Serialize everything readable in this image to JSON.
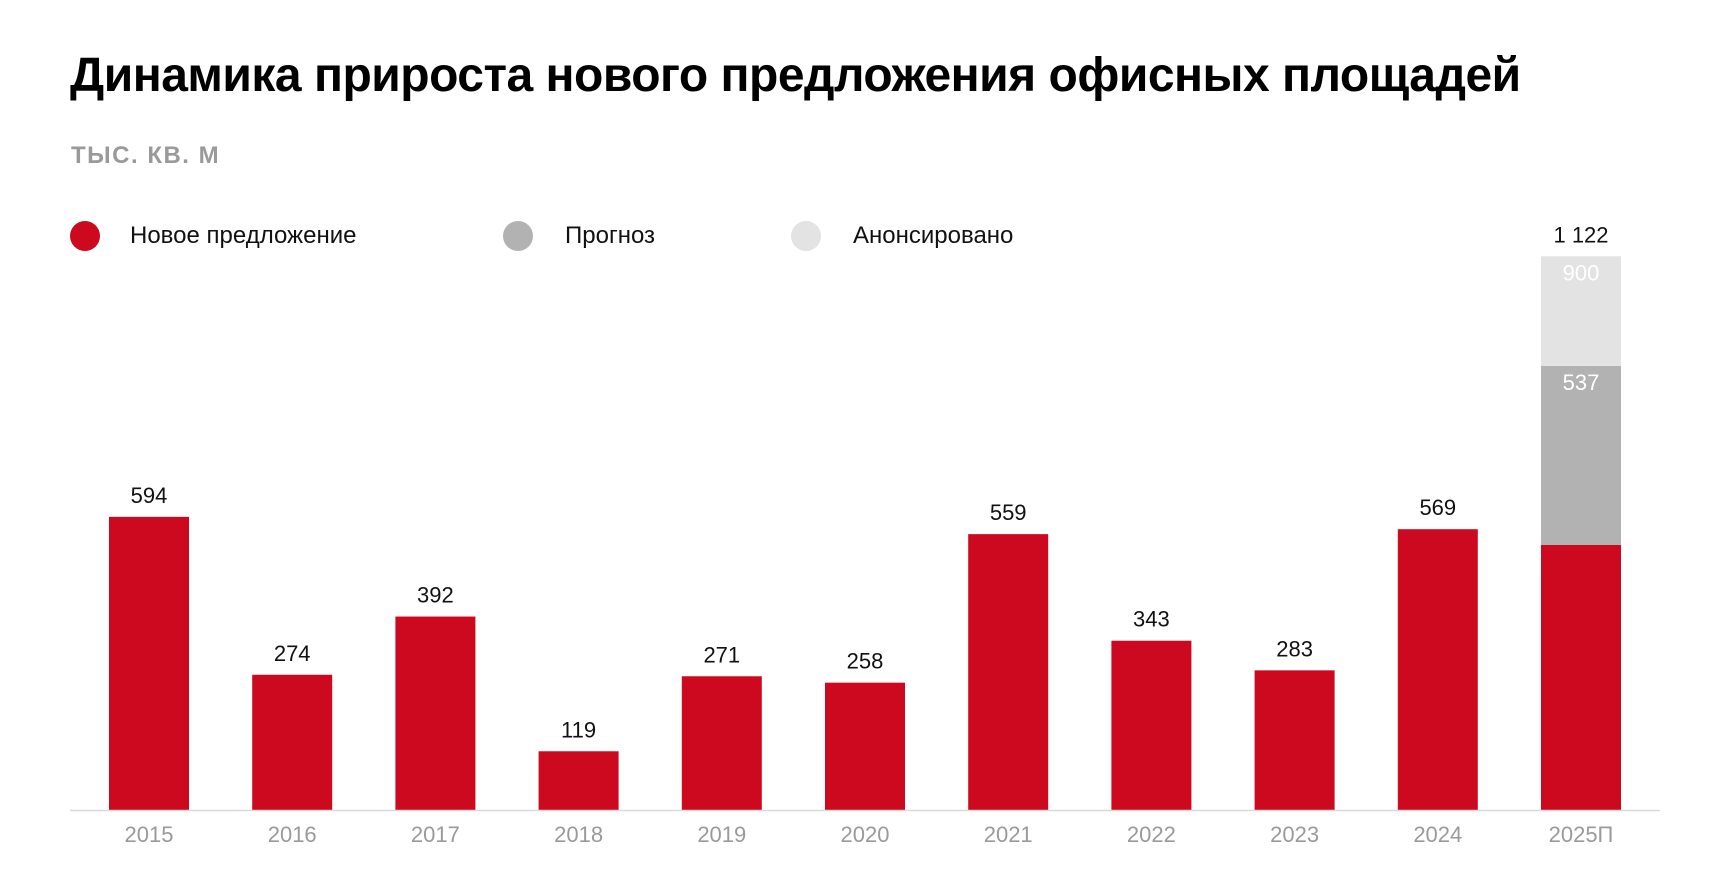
{
  "title": "Динамика прироста нового предложения офисных площадей",
  "subtitle": "ТЫС. КВ. М",
  "legend": [
    {
      "label": "Новое предложение",
      "color": "#cd0920",
      "icon": "circle-icon"
    },
    {
      "label": "Прогноз",
      "color": "#b2b2b2",
      "icon": "circle-icon"
    },
    {
      "label": "Анонсировано",
      "color": "#e3e3e3",
      "icon": "circle-icon"
    }
  ],
  "colors": {
    "new_supply": "#cd0920",
    "forecast": "#b2b2b2",
    "announced": "#e3e3e3",
    "axis": "#d9d9d9",
    "tick_label": "#9a9a9a",
    "value_label": "#111111",
    "inner_label": "#ffffff"
  },
  "chart_data": {
    "type": "bar",
    "stacked": true,
    "title": "Динамика прироста нового предложения офисных площадей",
    "ylabel": "ТЫС. КВ. М",
    "xlabel": "",
    "grid": false,
    "ylim": [
      0,
      1200
    ],
    "categories": [
      "2015",
      "2016",
      "2017",
      "2018",
      "2019",
      "2020",
      "2021",
      "2022",
      "2023",
      "2024",
      "2025П"
    ],
    "series": [
      {
        "name": "Новое предложение",
        "values": [
          594,
          274,
          392,
          119,
          271,
          258,
          559,
          343,
          283,
          569,
          537
        ]
      },
      {
        "name": "Прогноз",
        "values": [
          0,
          0,
          0,
          0,
          0,
          0,
          0,
          0,
          0,
          0,
          363
        ]
      },
      {
        "name": "Анонсировано",
        "values": [
          0,
          0,
          0,
          0,
          0,
          0,
          0,
          0,
          0,
          0,
          222
        ]
      }
    ],
    "bar_labels": [
      "594",
      "274",
      "392",
      "119",
      "271",
      "258",
      "559",
      "343",
      "283",
      "569",
      "1 122"
    ],
    "stack_labels": {
      "category": "2025П",
      "forecast": "537",
      "announced": "900"
    }
  }
}
